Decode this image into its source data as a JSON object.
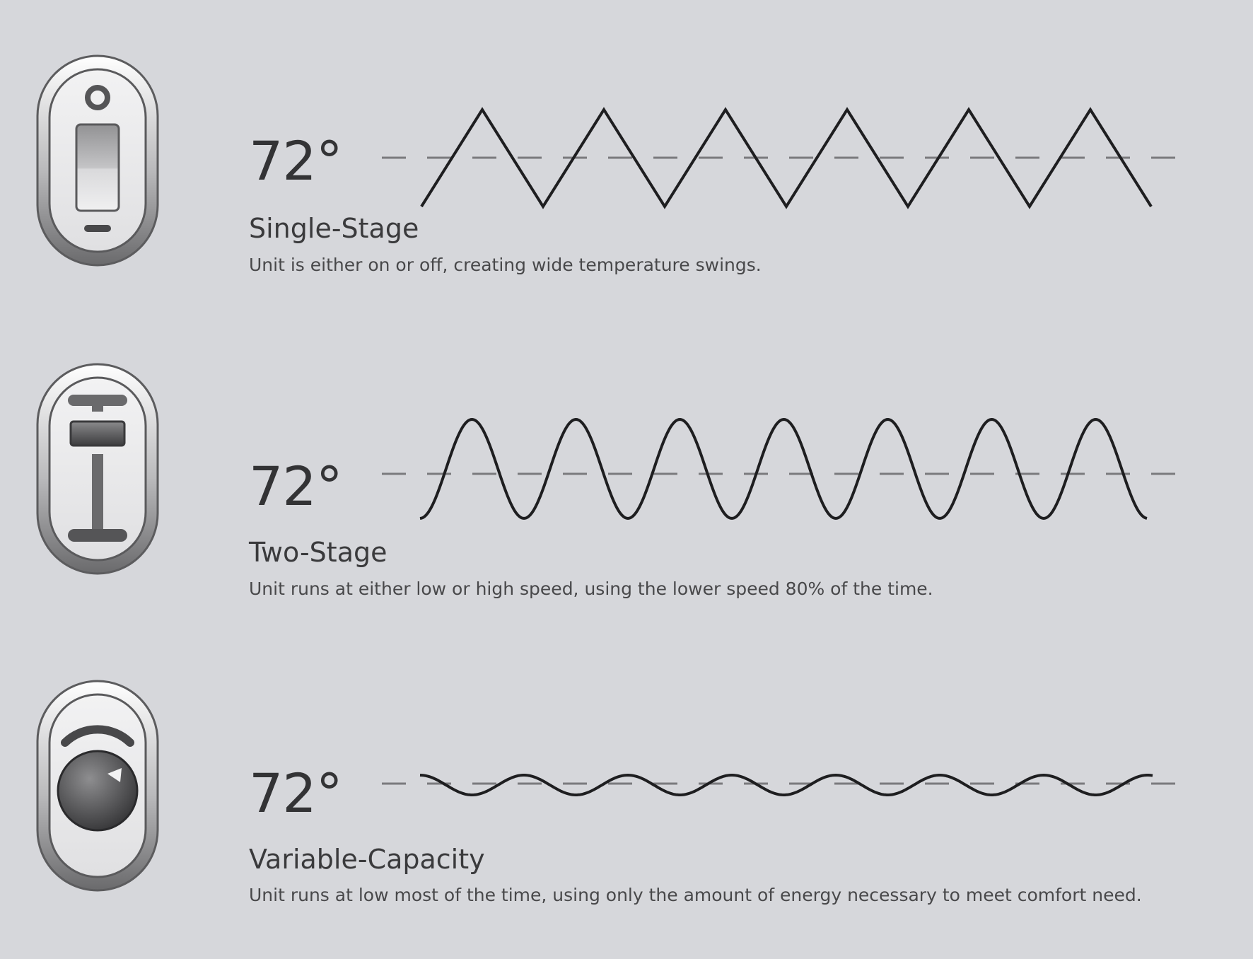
{
  "sections": [
    {
      "temperature": "72°",
      "title": "Single-Stage",
      "description": "Unit is either on or off, creating wide temperature swings.",
      "icon": "toggle-switch-icon",
      "waveform": "triangle"
    },
    {
      "temperature": "72°",
      "title": "Two-Stage",
      "description": "Unit runs at either low or high speed, using the lower speed 80% of the time.",
      "icon": "slider-icon",
      "waveform": "sine-large"
    },
    {
      "temperature": "72°",
      "title": "Variable-Capacity",
      "description": "Unit runs at low most of the time, using only the amount of energy necessary to meet comfort need.",
      "icon": "dial-knob-icon",
      "waveform": "sine-small"
    }
  ],
  "colors": {
    "background": "#d6d7db",
    "wave": "#1e1e20",
    "setpoint_line": "#7a7a7d"
  }
}
